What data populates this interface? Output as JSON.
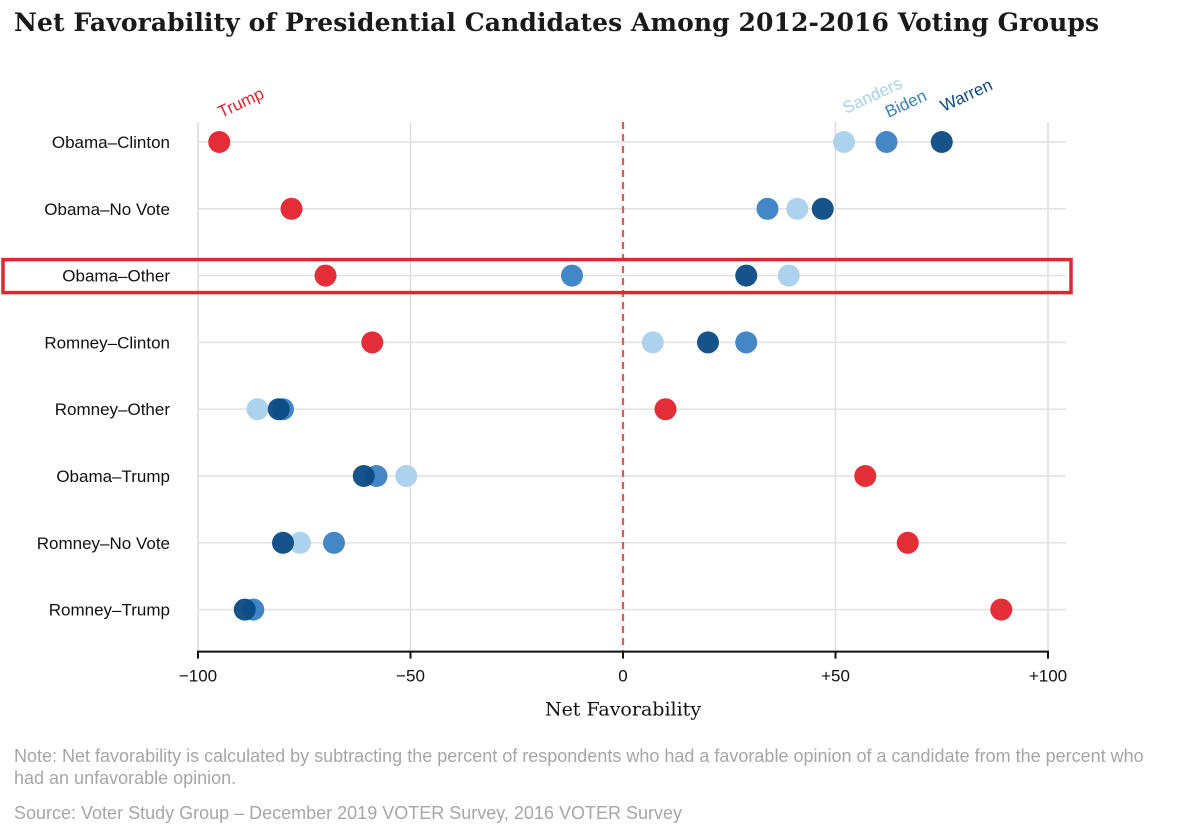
{
  "title": "Net Favorability of Presidential Candidates Among 2012-2016 Voting Groups",
  "note": "Note: Net favorability is calculated by subtracting the percent of respondents who had a favorable opinion of a candidate from the percent who had an unfavorable opinion.",
  "source": "Source: Voter Study Group – December 2019 VOTER Survey, 2016 VOTER Survey",
  "highlighted_group": "Obama–Other",
  "highlight_color": "#e0262f",
  "zero_line_color": "#e05a4e",
  "chart_data": {
    "type": "scatter",
    "xlabel": "Net Favorability",
    "xlim": [
      -100,
      100
    ],
    "xticks": [
      -100,
      -50,
      0,
      50,
      100
    ],
    "xtick_labels": [
      "−100",
      "−50",
      "0",
      "+50",
      "+100"
    ],
    "grid": true,
    "categories": [
      "Obama–Clinton",
      "Obama–No Vote",
      "Obama–Other",
      "Romney–Clinton",
      "Romney–Other",
      "Obama–Trump",
      "Romney–No Vote",
      "Romney–Trump"
    ],
    "series": [
      {
        "name": "Trump",
        "color": "#e3232c",
        "values": [
          -95,
          -78,
          -70,
          -59,
          10,
          57,
          67,
          89
        ]
      },
      {
        "name": "Sanders",
        "color": "#a9d0ec",
        "values": [
          52,
          41,
          39,
          7,
          -86,
          -51,
          -76,
          -87
        ]
      },
      {
        "name": "Biden",
        "color": "#3a81c4",
        "values": [
          62,
          34,
          -12,
          29,
          -80,
          -58,
          -68,
          -87
        ]
      },
      {
        "name": "Warren",
        "color": "#0b4a85",
        "values": [
          75,
          47,
          29,
          20,
          -81,
          -61,
          -80,
          -89
        ]
      }
    ]
  }
}
